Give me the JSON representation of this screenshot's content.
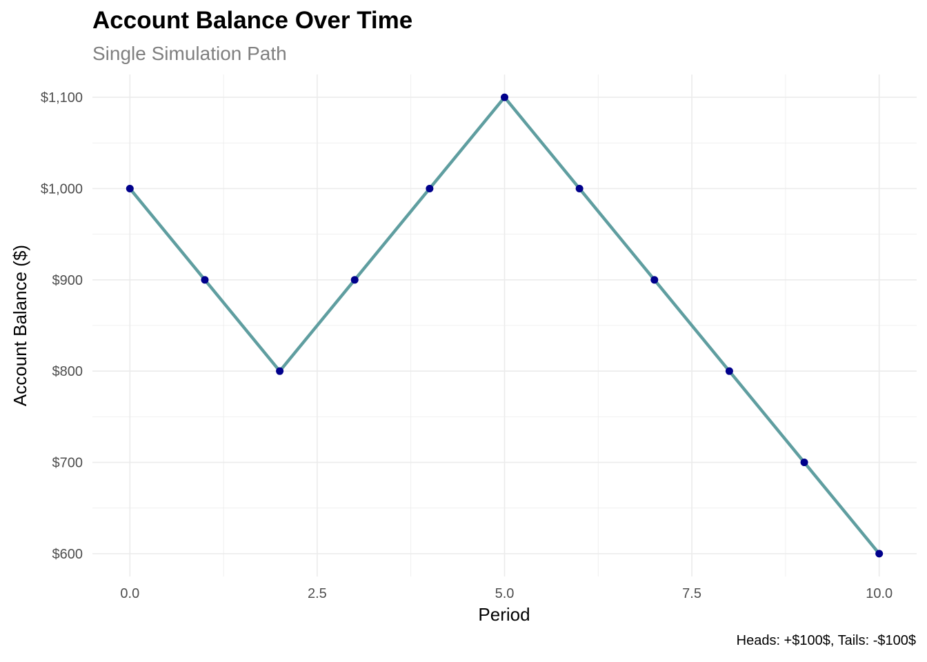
{
  "chart_data": {
    "type": "line",
    "title": "Account Balance Over Time",
    "subtitle": "Single Simulation Path",
    "caption": "Heads: +$100$, Tails: -$100$",
    "xlabel": "Period",
    "ylabel": "Account Balance ($)",
    "x": [
      0,
      1,
      2,
      3,
      4,
      5,
      6,
      7,
      8,
      9,
      10
    ],
    "y": [
      1000,
      900,
      800,
      900,
      1000,
      1100,
      1000,
      900,
      800,
      700,
      600
    ],
    "xlim": [
      -0.5,
      10.5
    ],
    "ylim": [
      575,
      1125
    ],
    "x_ticks": [
      0,
      2.5,
      5,
      7.5,
      10
    ],
    "x_tick_labels": [
      "0.0",
      "2.5",
      "5.0",
      "7.5",
      "10.0"
    ],
    "y_ticks": [
      600,
      700,
      800,
      900,
      1000,
      1100
    ],
    "y_tick_labels": [
      "$600",
      "$700",
      "$800",
      "$900",
      "$1,000",
      "$1,100"
    ],
    "grid": true,
    "colors": {
      "line": "#5f9ea0",
      "points": "#00008b",
      "grid": "#ebebeb"
    }
  }
}
